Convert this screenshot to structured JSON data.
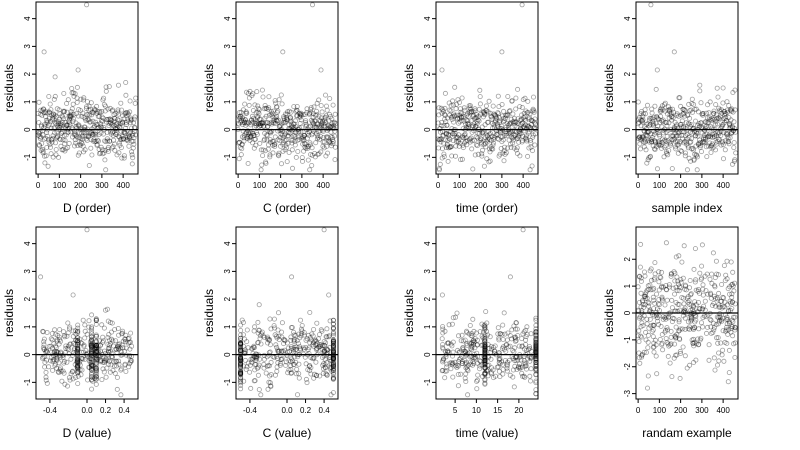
{
  "figure": {
    "colors": {
      "points": "#000000",
      "background": "#ffffff"
    }
  },
  "chart_data": [
    {
      "id": "p1",
      "type": "scatter",
      "row": 0,
      "col": 0,
      "xlabel": "D (order)",
      "ylabel": "residuals",
      "xlim": [
        -10,
        470
      ],
      "ylim": [
        -1.6,
        4.6
      ],
      "xticks": [
        0,
        100,
        200,
        300,
        400
      ],
      "yticks": [
        -1,
        0,
        1,
        2,
        3,
        4
      ],
      "xtick_labels": [
        "0",
        "100",
        "200",
        "300",
        "400"
      ],
      "ytick_labels": [
        "-1",
        "0",
        "1",
        "2",
        "3",
        "4"
      ],
      "hline": 0,
      "n_points": 460,
      "x_kind": "index",
      "x_cluster": [],
      "outliers": [
        [
          28,
          2.8
        ],
        [
          80,
          1.9
        ],
        [
          188,
          2.15
        ],
        [
          228,
          4.5
        ],
        [
          378,
          1.6
        ],
        [
          412,
          1.7
        ]
      ]
    },
    {
      "id": "p2",
      "type": "scatter",
      "row": 0,
      "col": 1,
      "xlabel": "C (order)",
      "ylabel": "residuals",
      "xlim": [
        -10,
        470
      ],
      "ylim": [
        -1.6,
        4.6
      ],
      "xticks": [
        0,
        100,
        200,
        300,
        400
      ],
      "yticks": [
        -1,
        0,
        1,
        2,
        3,
        4
      ],
      "xtick_labels": [
        "0",
        "100",
        "200",
        "300",
        "400"
      ],
      "ytick_labels": [
        "-1",
        "0",
        "1",
        "2",
        "3",
        "4"
      ],
      "hline": 0,
      "n_points": 460,
      "x_kind": "index",
      "x_cluster": [],
      "outliers": [
        [
          40,
          1.35
        ],
        [
          210,
          2.8
        ],
        [
          350,
          4.5
        ],
        [
          390,
          2.15
        ],
        [
          5,
          -1.05
        ]
      ]
    },
    {
      "id": "p3",
      "type": "scatter",
      "row": 0,
      "col": 2,
      "xlabel": "time (order)",
      "ylabel": "residuals",
      "xlim": [
        -10,
        470
      ],
      "ylim": [
        -1.6,
        4.6
      ],
      "xticks": [
        0,
        100,
        200,
        300,
        400
      ],
      "yticks": [
        -1,
        0,
        1,
        2,
        3,
        4
      ],
      "xtick_labels": [
        "0",
        "100",
        "200",
        "300",
        "400"
      ],
      "ytick_labels": [
        "-1",
        "0",
        "1",
        "2",
        "3",
        "4"
      ],
      "hline": 0,
      "n_points": 460,
      "x_kind": "index",
      "x_cluster": [],
      "outliers": [
        [
          18,
          2.15
        ],
        [
          300,
          2.8
        ],
        [
          395,
          4.5
        ],
        [
          5,
          -1.4
        ]
      ]
    },
    {
      "id": "p4",
      "type": "scatter",
      "row": 0,
      "col": 3,
      "xlabel": "sample index",
      "ylabel": "residuals",
      "xlim": [
        -10,
        470
      ],
      "ylim": [
        -1.6,
        4.6
      ],
      "xticks": [
        0,
        100,
        200,
        300,
        400
      ],
      "yticks": [
        -1,
        0,
        1,
        2,
        3,
        4
      ],
      "xtick_labels": [
        "0",
        "100",
        "200",
        "300",
        "400"
      ],
      "ytick_labels": [
        "-1",
        "0",
        "1",
        "2",
        "3",
        "4"
      ],
      "hline": 0,
      "n_points": 460,
      "x_kind": "index",
      "x_cluster": [],
      "outliers": [
        [
          60,
          4.5
        ],
        [
          90,
          2.15
        ],
        [
          170,
          2.8
        ],
        [
          290,
          1.6
        ],
        [
          400,
          1.5
        ]
      ]
    },
    {
      "id": "p5",
      "type": "scatter",
      "row": 1,
      "col": 0,
      "xlabel": "D (value)",
      "ylabel": "residuals",
      "xlim": [
        -0.55,
        0.55
      ],
      "ylim": [
        -1.6,
        4.6
      ],
      "xticks": [
        -0.4,
        0,
        0.2,
        0.4
      ],
      "yticks": [
        -1,
        0,
        1,
        2,
        3,
        4
      ],
      "xtick_labels": [
        "-0.4",
        "0.0",
        "0.2",
        "0.4"
      ],
      "ytick_labels": [
        "-1",
        "0",
        "1",
        "2",
        "3",
        "4"
      ],
      "hline": 0,
      "n_points": 460,
      "x_kind": "value",
      "x_cluster": [
        -0.1,
        0.05,
        0.1
      ],
      "outliers": [
        [
          -0.5,
          2.8
        ],
        [
          -0.15,
          2.15
        ],
        [
          0,
          4.5
        ],
        [
          0.2,
          1.6
        ]
      ]
    },
    {
      "id": "p6",
      "type": "scatter",
      "row": 1,
      "col": 1,
      "xlabel": "C (value)",
      "ylabel": "residuals",
      "xlim": [
        -0.55,
        0.55
      ],
      "ylim": [
        -1.6,
        4.6
      ],
      "xticks": [
        -0.4,
        0,
        0.2,
        0.4
      ],
      "yticks": [
        -1,
        0,
        1,
        2,
        3,
        4
      ],
      "xtick_labels": [
        "-0.4",
        "0.0",
        "0.2",
        "0.4"
      ],
      "ytick_labels": [
        "-1",
        "0",
        "1",
        "2",
        "3",
        "4"
      ],
      "hline": 0,
      "n_points": 460,
      "x_kind": "value",
      "x_cluster": [
        -0.5,
        0.5
      ],
      "outliers": [
        [
          -0.3,
          1.8
        ],
        [
          0.05,
          2.8
        ],
        [
          0.4,
          4.5
        ],
        [
          0.45,
          2.15
        ]
      ]
    },
    {
      "id": "p7",
      "type": "scatter",
      "row": 1,
      "col": 2,
      "xlabel": "time (value)",
      "ylabel": "residuals",
      "xlim": [
        0.5,
        24.5
      ],
      "ylim": [
        -1.6,
        4.6
      ],
      "xticks": [
        5,
        10,
        15,
        20
      ],
      "yticks": [
        -1,
        0,
        1,
        2,
        3,
        4
      ],
      "xtick_labels": [
        "5",
        "10",
        "15",
        "20"
      ],
      "ytick_labels": [
        "-1",
        "0",
        "1",
        "2",
        "3",
        "4"
      ],
      "hline": 0,
      "n_points": 460,
      "x_kind": "value",
      "x_cluster": [
        12,
        24
      ],
      "outliers": [
        [
          2,
          2.15
        ],
        [
          18,
          2.8
        ],
        [
          21,
          4.5
        ]
      ]
    },
    {
      "id": "p8",
      "type": "scatter",
      "row": 1,
      "col": 3,
      "xlabel": "randam example",
      "ylabel": "residuals",
      "xlim": [
        -10,
        470
      ],
      "ylim": [
        -3.2,
        3.2
      ],
      "xticks": [
        0,
        100,
        200,
        300,
        400
      ],
      "yticks": [
        -3,
        -2,
        -1,
        0,
        1,
        2
      ],
      "xtick_labels": [
        "0",
        "100",
        "200",
        "300",
        "400"
      ],
      "ytick_labels": [
        "-3",
        "-2",
        "-1",
        "0",
        "1",
        "2"
      ],
      "hline": 0,
      "n_points": 460,
      "x_kind": "random",
      "x_cluster": [],
      "outliers": []
    }
  ]
}
